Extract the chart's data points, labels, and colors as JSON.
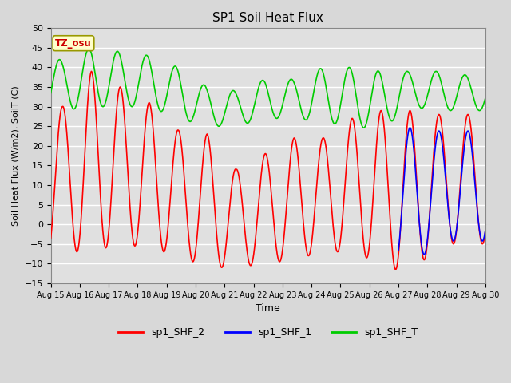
{
  "title": "SP1 Soil Heat Flux",
  "xlabel": "Time",
  "ylabel": "Soil Heat Flux (W/m2), SoilT (C)",
  "ylim": [
    -15,
    50
  ],
  "xlim": [
    0,
    15
  ],
  "x_tick_labels": [
    "Aug 15",
    "Aug 16",
    "Aug 17",
    "Aug 18",
    "Aug 19",
    "Aug 20",
    "Aug 21",
    "Aug 22",
    "Aug 23",
    "Aug 24",
    "Aug 25",
    "Aug 26",
    "Aug 27",
    "Aug 28",
    "Aug 29",
    "Aug 30"
  ],
  "bg_color": "#d8d8d8",
  "plot_bg_color": "#e0e0e0",
  "grid_color": "#ffffff",
  "tz_label": "TZ_osu",
  "tz_box_color": "#ffffcc",
  "tz_text_color": "#cc0000",
  "tz_border_color": "#999900",
  "legend_labels": [
    "sp1_SHF_2",
    "sp1_SHF_1",
    "sp1_SHF_T"
  ],
  "line_colors": [
    "#ff0000",
    "#0000ff",
    "#00cc00"
  ],
  "title_fontsize": 11,
  "red_peaks": [
    -2,
    39,
    -7,
    35,
    -5,
    31,
    -6,
    24,
    -8,
    23,
    -11,
    14,
    -11,
    18,
    -9,
    22,
    -7,
    22,
    -7,
    27,
    -10,
    29,
    -13,
    29,
    -5,
    28,
    -5
  ],
  "green_peaks": [
    32,
    42,
    30,
    45,
    30,
    44,
    30,
    43,
    27,
    40,
    25,
    35,
    25,
    34,
    25,
    37,
    27,
    37,
    27,
    40,
    26,
    40,
    25,
    39,
    30,
    39,
    29
  ],
  "blue_start_day": 12
}
